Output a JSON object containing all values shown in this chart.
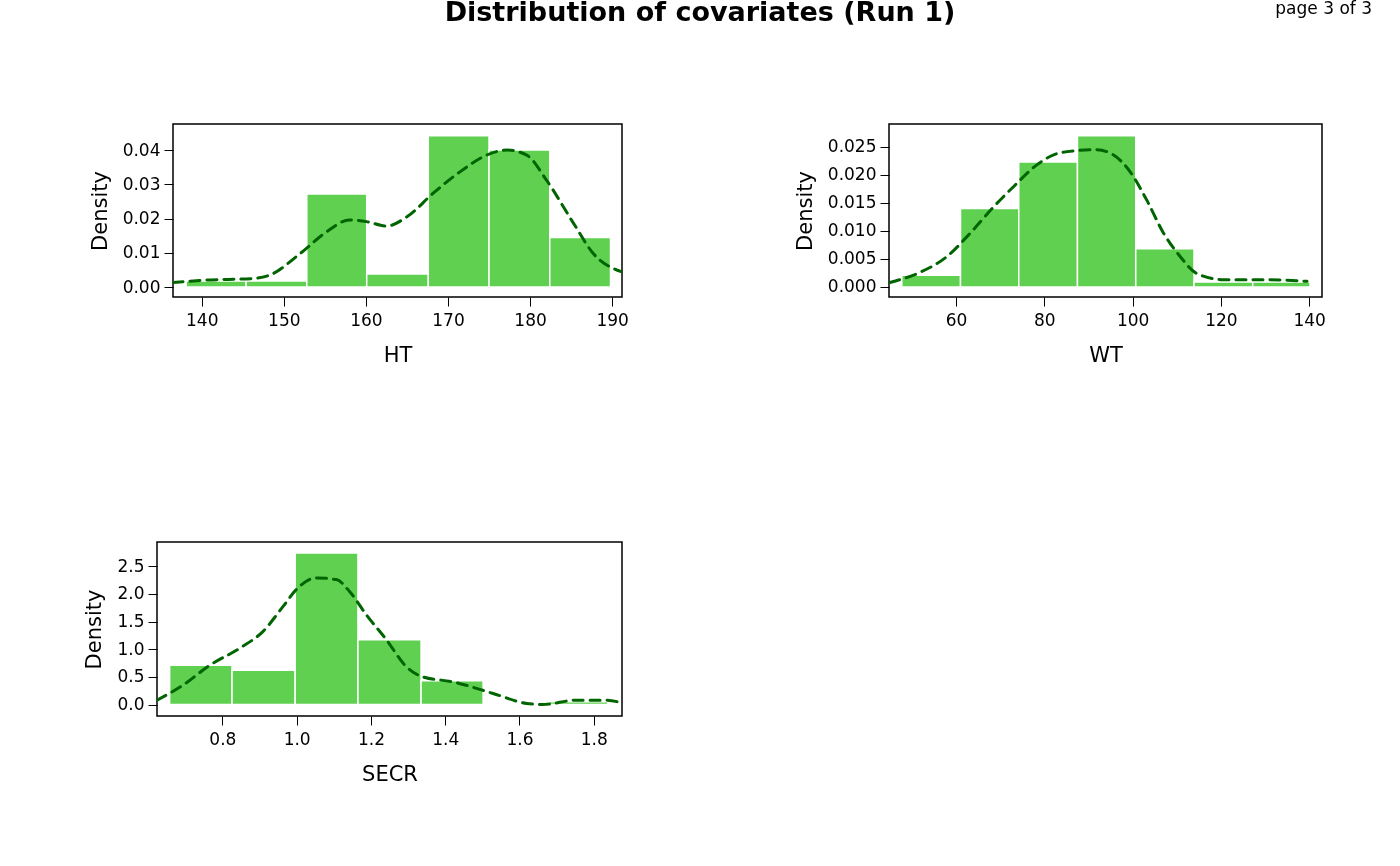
{
  "chart_data": [
    {
      "type": "histogram",
      "title": "Distribution of covariates (Run 1)",
      "annotations": [
        "page 3 of 3"
      ],
      "xlabel": "HT",
      "ylabel": "Density",
      "bins": [
        138.1,
        145.4,
        152.8,
        160.1,
        167.6,
        175.0,
        182.4,
        189.8
      ],
      "values": [
        0.0018,
        0.0018,
        0.0272,
        0.0038,
        0.0442,
        0.04,
        0.0145
      ],
      "color": "#5fd050",
      "series": [
        {
          "type": "line",
          "color": "#006400",
          "line_style": "dashed",
          "x": [
            136.5,
            140.2,
            146.3,
            148.3,
            152.0,
            155.2,
            158.0,
            160.1,
            162.5,
            165.0,
            168.2,
            171.5,
            174.7,
            177.2,
            179.6,
            182.0,
            185.3,
            187.7,
            191.1
          ],
          "values": [
            0.0013,
            0.002,
            0.0025,
            0.0035,
            0.0098,
            0.0161,
            0.0196,
            0.0191,
            0.0178,
            0.0205,
            0.0274,
            0.0337,
            0.0385,
            0.04,
            0.0385,
            0.0312,
            0.0186,
            0.0098,
            0.0045
          ]
        }
      ],
      "xlim": [
        136.5,
        191.2
      ],
      "ylim": [
        -0.0029,
        0.0476
      ],
      "xticks": [
        140,
        150,
        160,
        170,
        180,
        190
      ],
      "yticks": [
        {
          "value": 0,
          "label": "0.00"
        },
        {
          "value": 0.01,
          "label": "0.01"
        },
        {
          "value": 0.02,
          "label": "0.02"
        },
        {
          "value": 0.03,
          "label": "0.03"
        },
        {
          "value": 0.04,
          "label": "0.04"
        }
      ],
      "grid": false
    },
    {
      "type": "histogram",
      "xlabel": "WT",
      "ylabel": "Density",
      "bins": [
        47.7,
        61.0,
        74.2,
        87.5,
        100.7,
        113.9,
        127.2,
        140.2
      ],
      "values": [
        0.0021,
        0.014,
        0.0223,
        0.027,
        0.0068,
        0.0009,
        0.0009
      ],
      "color": "#5fd050",
      "series": [
        {
          "type": "line",
          "color": "#006400",
          "line_style": "dashed",
          "x": [
            45.0,
            51.8,
            57.9,
            63.2,
            68.5,
            73.0,
            78.3,
            82.1,
            86.6,
            91.9,
            95.6,
            99.4,
            103.2,
            107.0,
            110.8,
            114.5,
            120.6,
            129.6,
            139.5
          ],
          "values": [
            0.0008,
            0.0026,
            0.0054,
            0.0096,
            0.0143,
            0.0179,
            0.0218,
            0.0236,
            0.0243,
            0.0245,
            0.0236,
            0.0206,
            0.0155,
            0.0096,
            0.0054,
            0.0024,
            0.0013,
            0.0013,
            0.001
          ]
        }
      ],
      "xlim": [
        44.8,
        142.9
      ],
      "ylim": [
        -0.0018,
        0.0291
      ],
      "xticks": [
        60,
        80,
        100,
        120,
        140
      ],
      "yticks": [
        {
          "value": 0,
          "label": "0.000"
        },
        {
          "value": 0.005,
          "label": "0.005"
        },
        {
          "value": 0.01,
          "label": "0.010"
        },
        {
          "value": 0.015,
          "label": "0.015"
        },
        {
          "value": 0.02,
          "label": "0.020"
        },
        {
          "value": 0.025,
          "label": "0.025"
        }
      ],
      "grid": false
    },
    {
      "type": "histogram",
      "xlabel": "SECR",
      "ylabel": "Density",
      "bins": [
        0.658,
        0.826,
        0.996,
        1.165,
        1.335,
        1.502,
        1.67,
        1.838
      ],
      "values": [
        0.71,
        0.62,
        2.74,
        1.17,
        0.43,
        0,
        0.05
      ],
      "color": "#5fd050",
      "series": [
        {
          "type": "line",
          "color": "#006400",
          "line_style": "dashed",
          "x": [
            0.624,
            0.694,
            0.766,
            0.847,
            0.909,
            0.963,
            0.999,
            1.053,
            1.107,
            1.143,
            1.188,
            1.242,
            1.296,
            1.34,
            1.421,
            1.529,
            1.619,
            1.663,
            1.753,
            1.834,
            1.876
          ],
          "values": [
            0.08,
            0.35,
            0.71,
            1.02,
            1.32,
            1.77,
            2.08,
            2.29,
            2.26,
            2.04,
            1.62,
            1.17,
            0.68,
            0.5,
            0.41,
            0.2,
            0.02,
            0.0,
            0.08,
            0.08,
            0.03
          ]
        }
      ],
      "xlim": [
        0.624,
        1.876
      ],
      "ylim": [
        -0.207,
        2.94
      ],
      "xticks": [
        0.8,
        {
          "value": 1,
          "label": "1.0"
        },
        1.2,
        1.4,
        1.6,
        1.8
      ],
      "yticks": [
        {
          "value": 0,
          "label": "0.0"
        },
        {
          "value": 0.5,
          "label": "0.5"
        },
        {
          "value": 1,
          "label": "1.0"
        },
        {
          "value": 1.5,
          "label": "1.5"
        },
        {
          "value": 2,
          "label": "2.0"
        },
        {
          "value": 2.5,
          "label": "2.5"
        }
      ],
      "grid": false
    }
  ]
}
